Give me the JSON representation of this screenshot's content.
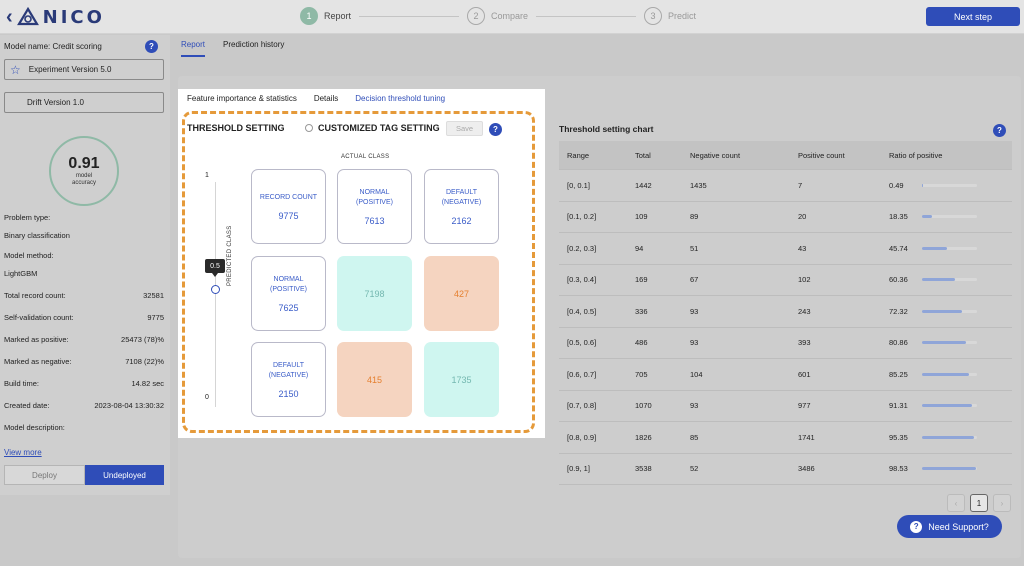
{
  "brand": {
    "back_icon": "chevron-left-icon",
    "logo_text": "NICO"
  },
  "stepper": {
    "steps": [
      {
        "number": "1",
        "label": "Report"
      },
      {
        "number": "2",
        "label": "Compare"
      },
      {
        "number": "3",
        "label": "Predict"
      }
    ],
    "next_label": "Next step"
  },
  "sidebar": {
    "model_name": "Model name: Credit scoring",
    "experiment": "Experiment Version 5.0",
    "drift": "Drift Version 1.0",
    "gauge": {
      "value": "0.91",
      "label": "model accuracy",
      "fraction": 0.91
    },
    "problem_type_label": "Problem type:",
    "problem_type": "Binary classification",
    "model_method_label": "Model method:",
    "model_method": "LightGBM",
    "stats": [
      {
        "label": "Total record count:",
        "value": "32581"
      },
      {
        "label": "Self-validation count:",
        "value": "9775"
      },
      {
        "label": "Marked as positive:",
        "value": "25473 (78)%"
      },
      {
        "label": "Marked as negative:",
        "value": "7108 (22)%"
      },
      {
        "label": "Build time:",
        "value": "14.82 sec"
      },
      {
        "label": "Created date:",
        "value": "2023-08-04 13:30:32"
      }
    ],
    "description_label": "Model description:",
    "view_more": "View more",
    "deploy": "Deploy",
    "undeploy": "Undeployed"
  },
  "main_tabs": [
    "Report",
    "Prediction history"
  ],
  "sub_tabs": [
    "Feature importance & statistics",
    "Details",
    "Decision threshold tuning"
  ],
  "threshold": {
    "title": "THRESHOLD SETTING",
    "custom_tag": "CUSTOMIZED TAG SETTING",
    "save": "Save",
    "actual_class": "ACTUAL CLASS",
    "predicted_class": "PREDICTED CLASS",
    "slider_max": "1",
    "slider_min": "0",
    "slider_value": "0.5",
    "record_count_label": "RECORD COUNT",
    "record_count": "9775",
    "col_normal_label_1": "NORMAL",
    "col_normal_label_2": "(POSITIVE)",
    "col_normal_value": "7613",
    "col_default_label_1": "DEFAULT",
    "col_default_label_2": "(NEGATIVE)",
    "col_default_value": "2162",
    "row_normal_label_1": "NORMAL",
    "row_normal_label_2": "(POSITIVE)",
    "row_normal_value": "7625",
    "row_default_label_1": "DEFAULT",
    "row_default_label_2": "(NEGATIVE)",
    "row_default_value": "2150",
    "tp": "7198",
    "fp": "427",
    "fn": "415",
    "tn": "1735"
  },
  "chart_table": {
    "title": "Threshold setting chart",
    "headers": [
      "Range",
      "Total",
      "Negative count",
      "Positive count",
      "Ratio of positive"
    ],
    "rows": [
      {
        "range": "[0, 0.1]",
        "total": "1442",
        "neg": "1435",
        "pos": "7",
        "ratio": "0.49",
        "fill": 0.0049
      },
      {
        "range": "[0.1, 0.2]",
        "total": "109",
        "neg": "89",
        "pos": "20",
        "ratio": "18.35",
        "fill": 0.1835
      },
      {
        "range": "[0.2, 0.3]",
        "total": "94",
        "neg": "51",
        "pos": "43",
        "ratio": "45.74",
        "fill": 0.4574
      },
      {
        "range": "[0.3, 0.4]",
        "total": "169",
        "neg": "67",
        "pos": "102",
        "ratio": "60.36",
        "fill": 0.6036
      },
      {
        "range": "[0.4, 0.5]",
        "total": "336",
        "neg": "93",
        "pos": "243",
        "ratio": "72.32",
        "fill": 0.7232
      },
      {
        "range": "[0.5, 0.6]",
        "total": "486",
        "neg": "93",
        "pos": "393",
        "ratio": "80.86",
        "fill": 0.8086
      },
      {
        "range": "[0.6, 0.7]",
        "total": "705",
        "neg": "104",
        "pos": "601",
        "ratio": "85.25",
        "fill": 0.8525
      },
      {
        "range": "[0.7, 0.8]",
        "total": "1070",
        "neg": "93",
        "pos": "977",
        "ratio": "91.31",
        "fill": 0.9131
      },
      {
        "range": "[0.8, 0.9]",
        "total": "1826",
        "neg": "85",
        "pos": "1741",
        "ratio": "95.35",
        "fill": 0.9535
      },
      {
        "range": "[0.9, 1]",
        "total": "3538",
        "neg": "52",
        "pos": "3486",
        "ratio": "98.53",
        "fill": 0.9853
      }
    ]
  },
  "pagination": {
    "prev": "‹",
    "current": "1",
    "next": "›"
  },
  "support": "Need Support?",
  "help_icon_text": "?",
  "colors": {
    "accent": "#2f4db8",
    "highlight": "#e59a3a",
    "tp_bg": "#cff6f0",
    "fp_bg": "#f5d4c0"
  }
}
